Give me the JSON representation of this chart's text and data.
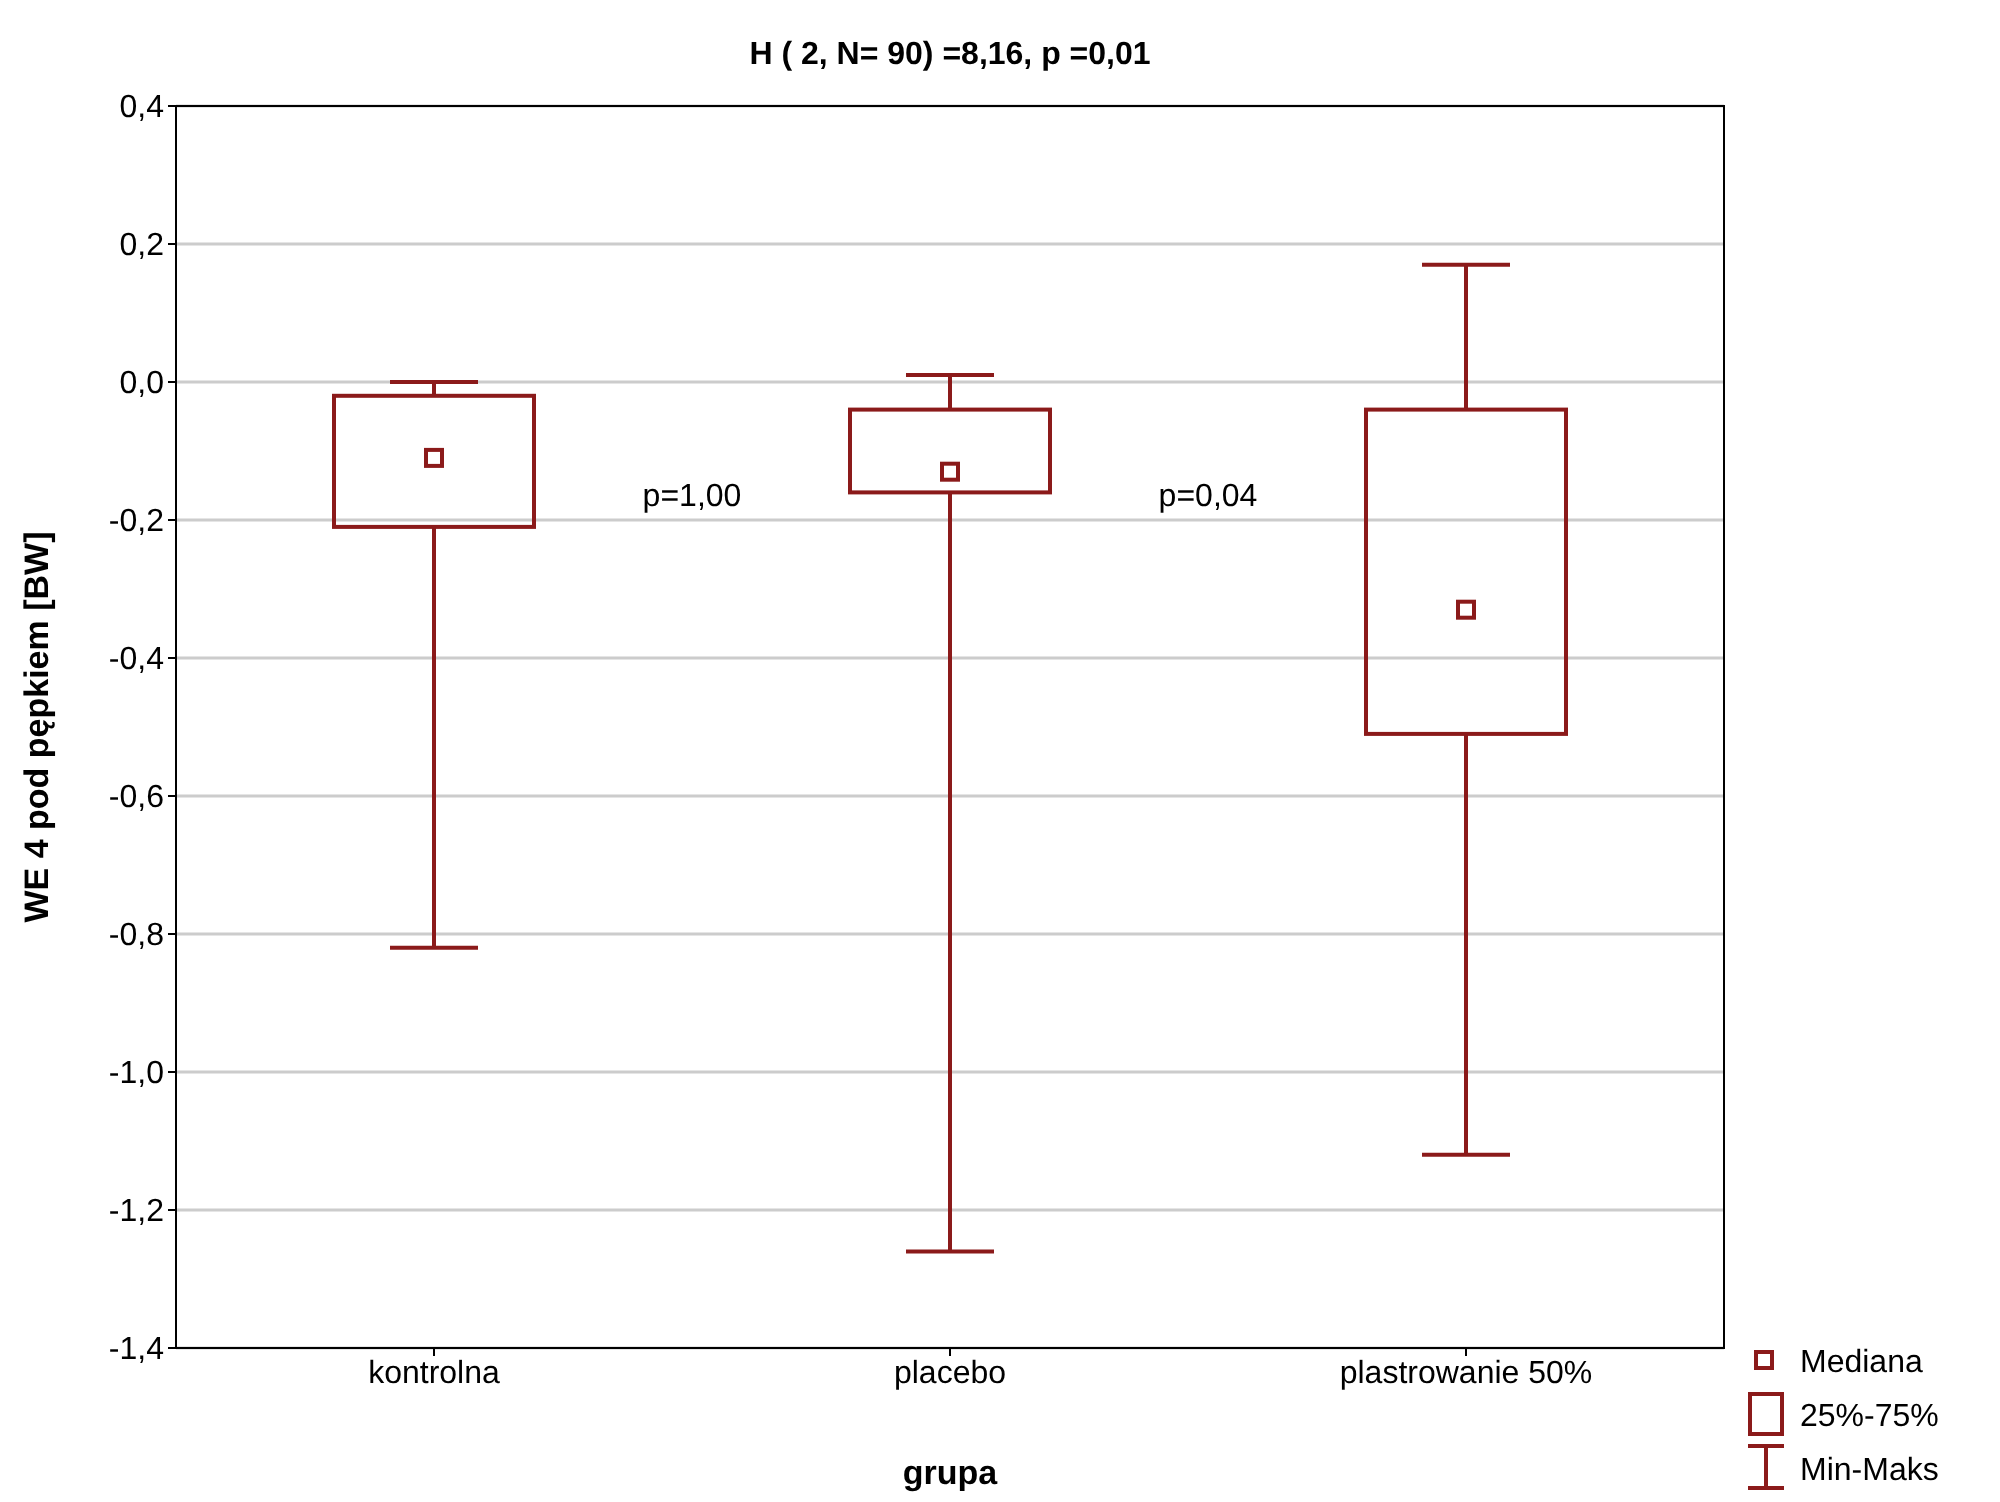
{
  "chart_data": {
    "type": "box",
    "title": "H ( 2, N= 90) =8,16, p =0,01",
    "xlabel": "grupa",
    "ylabel": "WE 4 pod pępkiem [BW]",
    "categories": [
      "kontrolna",
      "placebo",
      "plastrowanie 50%"
    ],
    "boxes": [
      {
        "low": -0.82,
        "q1": -0.21,
        "median": -0.11,
        "q3": -0.02,
        "high": 0.0
      },
      {
        "low": -1.26,
        "q1": -0.16,
        "median": -0.13,
        "q3": -0.04,
        "high": 0.01
      },
      {
        "low": -1.12,
        "q1": -0.51,
        "median": -0.33,
        "q3": -0.04,
        "high": 0.17
      }
    ],
    "color": "#8b1a1a",
    "ylim": [
      -1.4,
      0.4
    ],
    "yticks": [
      {
        "value": -1.4,
        "label": "-1,4"
      },
      {
        "value": -1.2,
        "label": "-1,2"
      },
      {
        "value": -1.0,
        "label": "-1,0"
      },
      {
        "value": -0.8,
        "label": "-0,8"
      },
      {
        "value": -0.6,
        "label": "-0,6"
      },
      {
        "value": -0.4,
        "label": "-0,4"
      },
      {
        "value": -0.2,
        "label": "-0,2"
      },
      {
        "value": 0.0,
        "label": "0,0"
      },
      {
        "value": 0.2,
        "label": "0,2"
      },
      {
        "value": 0.4,
        "label": "0,4"
      }
    ],
    "grid": "y",
    "annotations": [
      "p=1,00",
      "p=0,04",
      "Mediana",
      "25%-75%",
      "Min-Maks"
    ]
  }
}
